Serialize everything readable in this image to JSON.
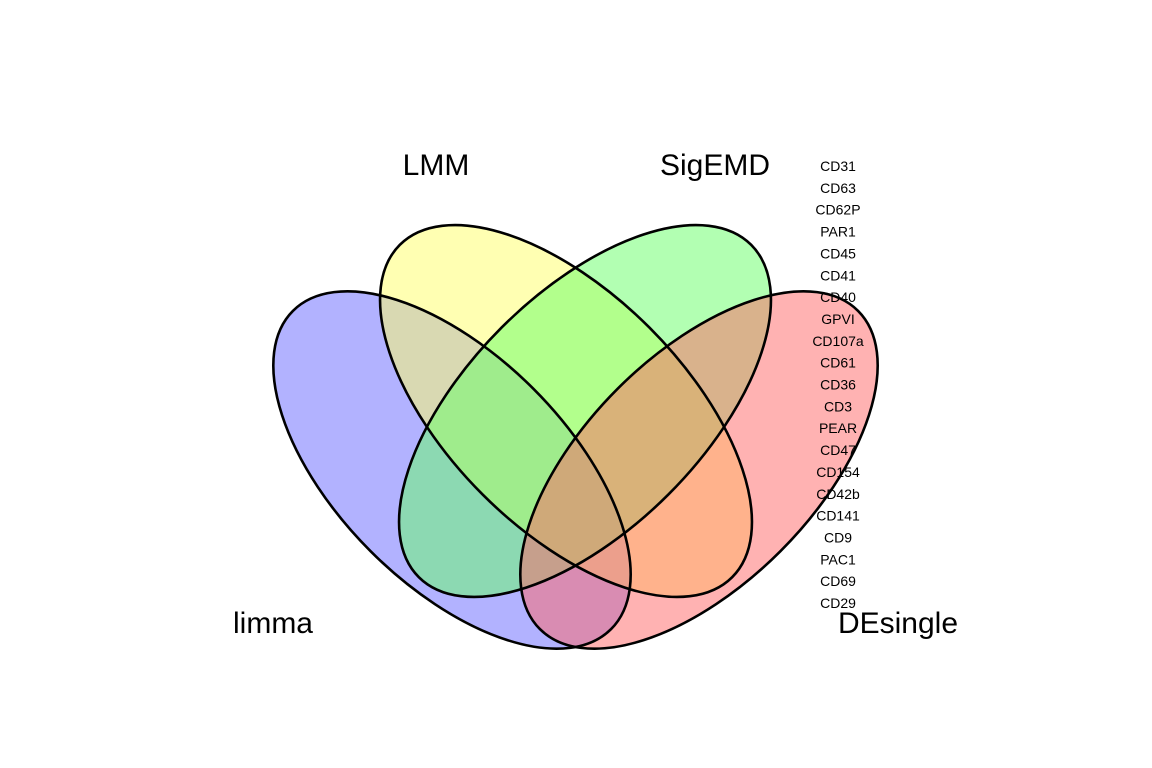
{
  "diagram": {
    "type": "venn",
    "sets": [
      {
        "id": "limma",
        "label": "limma",
        "color": "#6666ff"
      },
      {
        "id": "lmm",
        "label": "LMM",
        "color": "#ffff66"
      },
      {
        "id": "sigemd",
        "label": "SigEMD",
        "color": "#66ff66"
      },
      {
        "id": "desingle",
        "label": "DEsingle",
        "color": "#ff6666"
      }
    ],
    "region_genes": {
      "desingle_only": [
        "CD31",
        "CD63",
        "CD62P",
        "PAR1",
        "CD45",
        "CD41",
        "CD40",
        "GPVI",
        "CD107a",
        "CD61",
        "CD36",
        "CD3",
        "PEAR",
        "CD47",
        "CD154",
        "CD42b",
        "CD141",
        "CD9",
        "PAC1",
        "CD69",
        "CD29"
      ]
    }
  }
}
